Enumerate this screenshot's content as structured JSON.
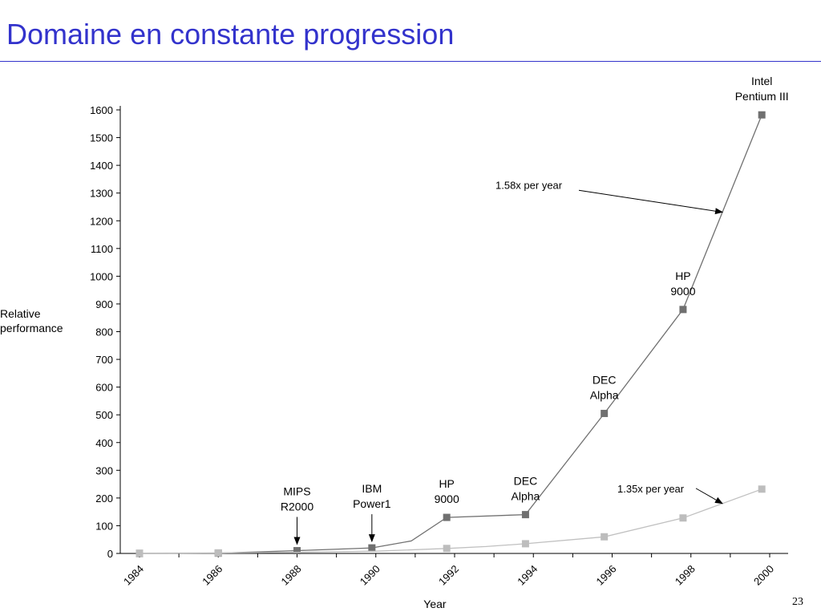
{
  "slide": {
    "title": "Domaine en constante progression",
    "page_number": "23"
  },
  "chart_data": {
    "type": "line",
    "xlabel": "Year",
    "ylabel": "Relative performance",
    "ylim": [
      0,
      1600
    ],
    "y_ticks": [
      0,
      100,
      200,
      300,
      400,
      500,
      600,
      700,
      800,
      900,
      1000,
      1100,
      1200,
      1300,
      1400,
      1500,
      1600
    ],
    "xlim": [
      1984,
      2000
    ],
    "x_tick_labels": [
      "1984",
      "1986",
      "1988",
      "1990",
      "1992",
      "1994",
      "1996",
      "1998",
      "2000"
    ],
    "grid": false,
    "series": [
      {
        "color": "#707070",
        "marker_color": "#707070",
        "points": [
          {
            "x": 1984.0,
            "y": 0
          },
          {
            "x": 1986.0,
            "y": 1
          },
          {
            "x": 1988.0,
            "y": 10
          },
          {
            "x": 1989.9,
            "y": 20
          },
          {
            "x": 1990.9,
            "y": 45,
            "marker": false
          },
          {
            "x": 1991.8,
            "y": 130
          },
          {
            "x": 1993.8,
            "y": 140
          },
          {
            "x": 1995.8,
            "y": 505
          },
          {
            "x": 1997.8,
            "y": 880
          },
          {
            "x": 1999.8,
            "y": 1582
          }
        ]
      },
      {
        "color": "#c0c0c0",
        "marker_color": "#bdbdbd",
        "points": [
          {
            "x": 1984.0,
            "y": 1
          },
          {
            "x": 1986.0,
            "y": 2
          },
          {
            "x": 1988.0,
            "y": 4,
            "marker": false
          },
          {
            "x": 1990.0,
            "y": 8,
            "marker": false
          },
          {
            "x": 1991.8,
            "y": 18
          },
          {
            "x": 1992.8,
            "y": 25,
            "marker": false
          },
          {
            "x": 1993.8,
            "y": 35
          },
          {
            "x": 1995.8,
            "y": 60
          },
          {
            "x": 1997.8,
            "y": 128
          },
          {
            "x": 1999.8,
            "y": 232
          }
        ]
      }
    ],
    "annotations": [
      {
        "lines": [
          "MIPS",
          "R2000"
        ],
        "x": 1988.0,
        "y": 10,
        "arrow": true
      },
      {
        "lines": [
          "IBM",
          "Power1"
        ],
        "x": 1989.9,
        "y": 20,
        "arrow": true
      },
      {
        "lines": [
          "HP",
          "9000"
        ],
        "x": 1991.8,
        "y": 130,
        "arrow": false
      },
      {
        "lines": [
          "DEC",
          "Alpha"
        ],
        "x": 1993.8,
        "y": 140,
        "arrow": false
      },
      {
        "lines": [
          "DEC",
          "Alpha"
        ],
        "x": 1995.8,
        "y": 505,
        "arrow": false
      },
      {
        "lines": [
          "HP",
          "9000"
        ],
        "x": 1997.8,
        "y": 880,
        "arrow": false
      },
      {
        "lines": [
          "Intel",
          "Pentium III"
        ],
        "x": 1999.8,
        "y": 1582,
        "arrow": false
      }
    ],
    "rate_labels": [
      {
        "text": "1.58x per year",
        "series": 0
      },
      {
        "text": "1.35x per year",
        "series": 1
      }
    ]
  }
}
